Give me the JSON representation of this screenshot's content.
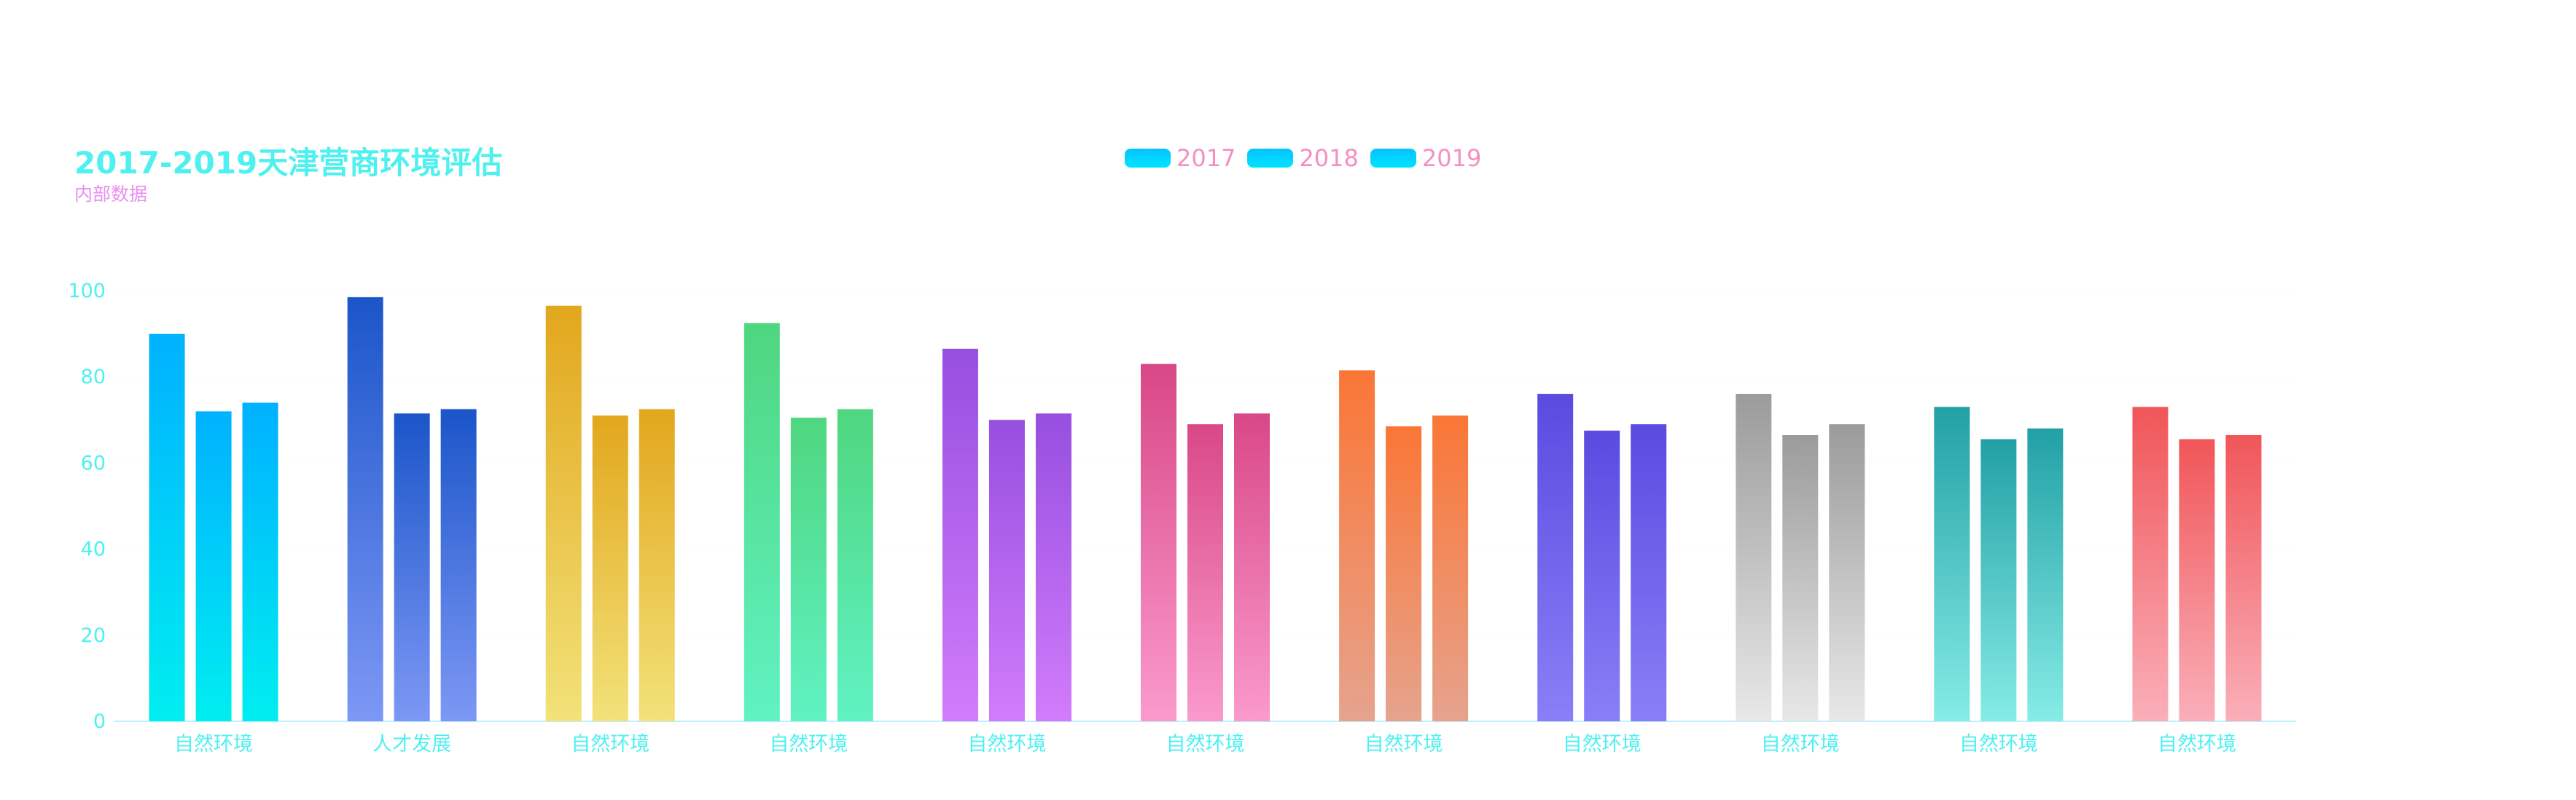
{
  "title": "2017-2019天津营商环境评估",
  "subtitle": "内部数据",
  "legend": [
    "2017",
    "2018",
    "2019"
  ],
  "colors": {
    "title": "#4ef0f0",
    "subtitle": "#e78ff0",
    "legend_text": "#f58fc0",
    "axis": "#4ef0f0",
    "axis_line": "#bdefff"
  },
  "chart_data": {
    "type": "bar",
    "title": "2017-2019天津营商环境评估",
    "subtitle": "内部数据",
    "categories": [
      "自然环境",
      "人才发展",
      "自然环境",
      "自然环境",
      "自然环境",
      "自然环境",
      "自然环境",
      "自然环境",
      "自然环境",
      "自然环境",
      "自然环境"
    ],
    "series": [
      {
        "name": "2017",
        "values": [
          90,
          98.5,
          96.5,
          92.5,
          86.5,
          83,
          81.5,
          76,
          76,
          73,
          73
        ]
      },
      {
        "name": "2018",
        "values": [
          72,
          71.5,
          71,
          70.5,
          70,
          69,
          68.5,
          67.5,
          66.5,
          65.5,
          65.5
        ]
      },
      {
        "name": "2019",
        "values": [
          74,
          72.5,
          72.5,
          72.5,
          71.5,
          71.5,
          71,
          69,
          69,
          68,
          66.5
        ]
      }
    ],
    "ylim": [
      0,
      100
    ],
    "yticks": [
      "0",
      "20",
      "40",
      "60",
      "80",
      "100"
    ],
    "grid": false,
    "legend_position": "top-center",
    "category_gradients": [
      [
        "#00b1ff",
        "#00eef0"
      ],
      [
        "#1b55c9",
        "#7d98f5"
      ],
      [
        "#e2a71d",
        "#f2e279"
      ],
      [
        "#4fd67f",
        "#60f2c3"
      ],
      [
        "#974fe0",
        "#d17cfb"
      ],
      [
        "#d94886",
        "#fa9acd"
      ],
      [
        "#fa7636",
        "#e6a38d"
      ],
      [
        "#5a4be0",
        "#8a7ff7"
      ],
      [
        "#9b9b9b",
        "#e8e8e8"
      ],
      [
        "#22a0a5",
        "#86ece6"
      ],
      [
        "#f05659",
        "#faafb9"
      ]
    ]
  }
}
